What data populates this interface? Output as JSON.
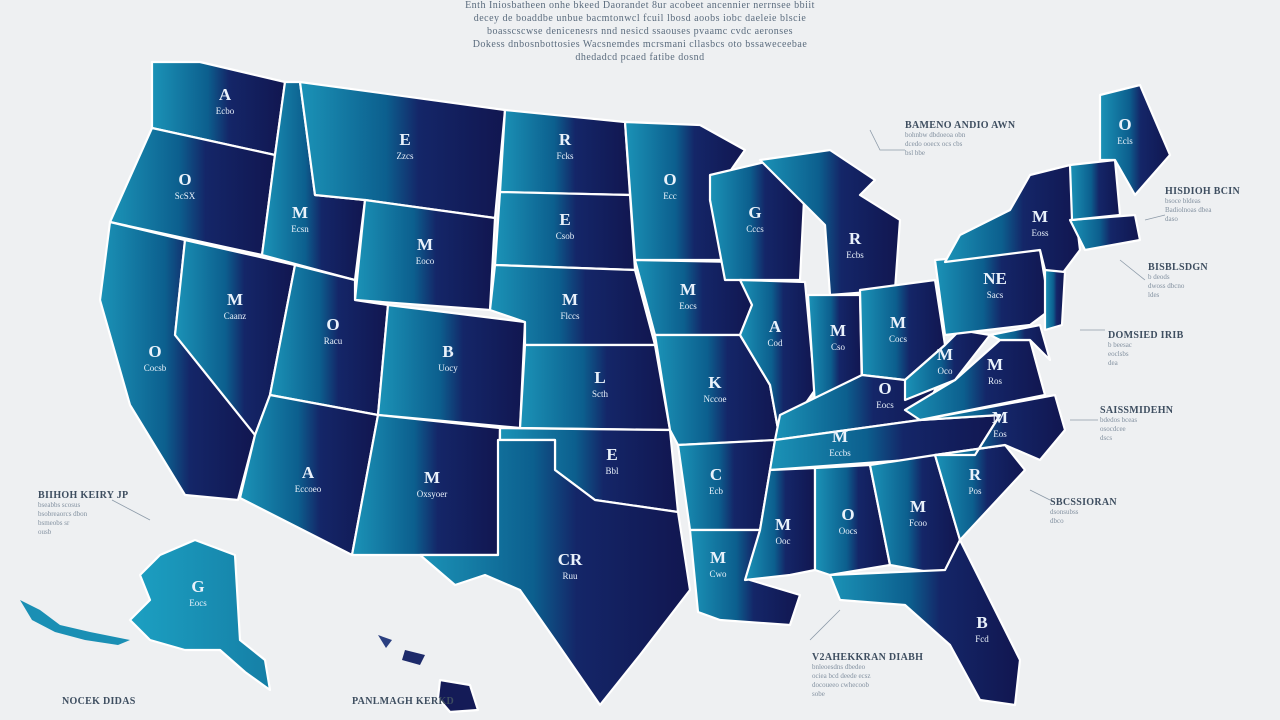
{
  "colors": {
    "background": "#eef0f2",
    "west": "#1d8fb3",
    "central": "#0b5e8d",
    "east": "#141b57",
    "border": "#ffffff"
  },
  "title_lines": [
    "Enth Iniosbatheen onhe bkeed Daorandet 8ur acobeet ancennier nerrnsee bbiit",
    "decey de boaddbe unbue bacmtonwcl fcuil lbosd aoobs iobc daeleie blscie",
    "boasscscwse denicenesrs nnd nesicd ssaouses pvaamc cvdc aeronses",
    "Dokess dnbosnbottosies Wacsnemdes mcrsmani cllasbcs oto bssaweceebae",
    "dhedadcd pcaed fatibe dosnd"
  ],
  "states": [
    {
      "id": "wa",
      "big": "A",
      "small": "Ecbo"
    },
    {
      "id": "or",
      "big": "O",
      "small": "ScSX"
    },
    {
      "id": "ca",
      "big": "O",
      "small": "Cocsb"
    },
    {
      "id": "nv",
      "big": "M",
      "small": "Caanz"
    },
    {
      "id": "id",
      "big": "M",
      "small": "Ecsn"
    },
    {
      "id": "mt",
      "big": "E",
      "small": "Zzcs"
    },
    {
      "id": "wy",
      "big": "M",
      "small": "Eoco"
    },
    {
      "id": "ut",
      "big": "O",
      "small": "Racu"
    },
    {
      "id": "co",
      "big": "B",
      "small": "Uocy"
    },
    {
      "id": "az",
      "big": "A",
      "small": "Eccoeo"
    },
    {
      "id": "nm",
      "big": "M",
      "small": "Oxsyoer"
    },
    {
      "id": "nd",
      "big": "R",
      "small": "Fcks"
    },
    {
      "id": "sd",
      "big": "E",
      "small": "Csob"
    },
    {
      "id": "ne",
      "big": "M",
      "small": "Flccs"
    },
    {
      "id": "ks",
      "big": "L",
      "small": "Scth"
    },
    {
      "id": "ok",
      "big": "E",
      "small": "Bbl"
    },
    {
      "id": "tx",
      "big": "CR",
      "small": "Ruu"
    },
    {
      "id": "mn",
      "big": "O",
      "small": "Ecc"
    },
    {
      "id": "ia",
      "big": "M",
      "small": "Eocs"
    },
    {
      "id": "mo",
      "big": "K",
      "small": "Nccoe"
    },
    {
      "id": "ar",
      "big": "C",
      "small": "Ecb"
    },
    {
      "id": "la",
      "big": "M",
      "small": "Cwo"
    },
    {
      "id": "wi",
      "big": "G",
      "small": "Cccs"
    },
    {
      "id": "il",
      "big": "A",
      "small": "Cod"
    },
    {
      "id": "mi",
      "big": "R",
      "small": "Ecbs"
    },
    {
      "id": "in",
      "big": "M",
      "small": "Cso"
    },
    {
      "id": "oh",
      "big": "M",
      "small": "Cocs"
    },
    {
      "id": "ky",
      "big": "O",
      "small": "Eocs"
    },
    {
      "id": "tn",
      "big": "M",
      "small": "Eccbs"
    },
    {
      "id": "ms",
      "big": "M",
      "small": "Ooc"
    },
    {
      "id": "al",
      "big": "O",
      "small": "Oocs"
    },
    {
      "id": "ga",
      "big": "M",
      "small": "Fcoo"
    },
    {
      "id": "fl",
      "big": "B",
      "small": "Fcd"
    },
    {
      "id": "sc",
      "big": "R",
      "small": "Pos"
    },
    {
      "id": "nc",
      "big": "M",
      "small": "Eos"
    },
    {
      "id": "va",
      "big": "M",
      "small": "Ros"
    },
    {
      "id": "wv",
      "big": "M",
      "small": "Oco"
    },
    {
      "id": "pa",
      "big": "NE",
      "small": "Sacs"
    },
    {
      "id": "ny",
      "big": "M",
      "small": "Eoss"
    },
    {
      "id": "me",
      "big": "O",
      "small": "Ecls"
    },
    {
      "id": "ak",
      "big": "G",
      "small": "Eocs"
    },
    {
      "id": "hi",
      "big": "",
      "small": ""
    }
  ],
  "callouts": [
    {
      "id": "ne1",
      "heading": "BAMENO ANDIO AWN",
      "lines": [
        "bohnbw dbdoeoa obn",
        "dcedo ooecx ocs cbs",
        "bsl bbe"
      ]
    },
    {
      "id": "ne2",
      "heading": "HISDIOH BCIN",
      "lines": [
        "bsoce bldeas",
        "Badiolnoas dbea",
        "daso"
      ]
    },
    {
      "id": "ne3",
      "heading": "BISBLSDGN",
      "lines": [
        "b deods",
        "dwoss dbcno",
        "ldes"
      ]
    },
    {
      "id": "ne4",
      "heading": "DOMSIED IRIB",
      "lines": [
        "b beesac",
        "eoclsbs",
        "dea"
      ]
    },
    {
      "id": "se1",
      "heading": "SAISSMIDEHN",
      "lines": [
        "bdedos bceas",
        "osocdcee",
        "dscs"
      ]
    },
    {
      "id": "se2",
      "heading": "SBCSSIORAN",
      "lines": [
        "dsonsubss",
        "dbco"
      ]
    },
    {
      "id": "gulf",
      "heading": "V2AHEKKRAN DIABH",
      "lines": [
        "bnleoesdns dbedeo",
        "ociea bcd deede ecsz",
        "docoueeo cwhecoob",
        "sobe"
      ]
    },
    {
      "id": "west",
      "heading": "BIIHOH KEIRY JP",
      "lines": [
        "bseabbs scosus",
        "bsobreaorcs dbon",
        "bsmeobs sr",
        "ousb"
      ]
    },
    {
      "id": "bottom1",
      "heading": "NOCEK DIDAS",
      "lines": []
    },
    {
      "id": "bottom2",
      "heading": "PANLMAGH KERKD",
      "lines": []
    }
  ]
}
